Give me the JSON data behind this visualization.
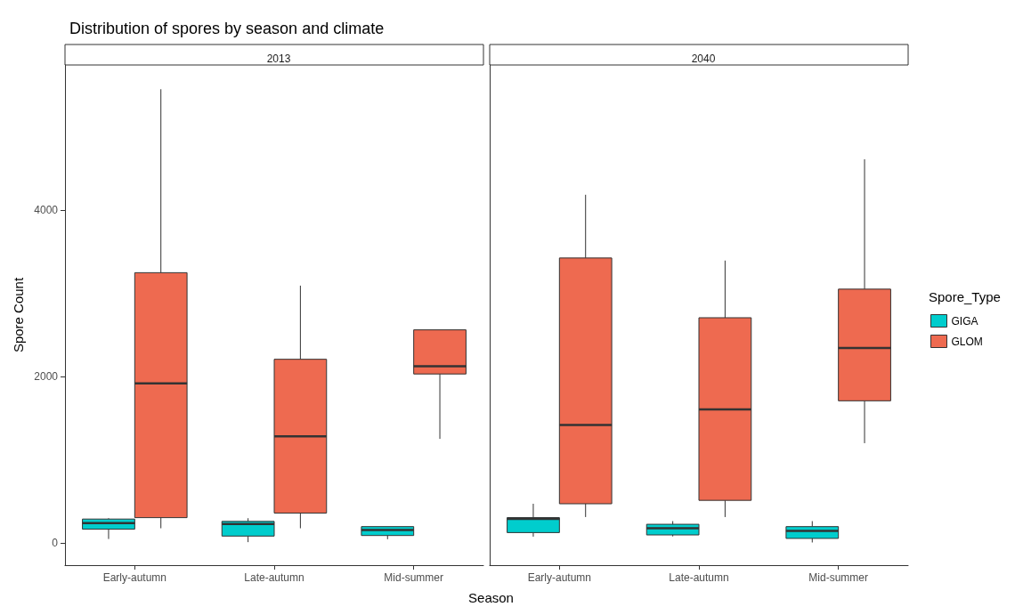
{
  "chart_data": [
    {
      "type": "box",
      "title": "Distribution of spores by season and climate",
      "subtitle": "2013",
      "legend_title": "Spore_Type",
      "legend": "right",
      "xlabel": "Season",
      "ylabel": "Spore Count",
      "categories": [
        "Early-autumn",
        "Late-autumn",
        "Mid-summer"
      ],
      "ylim": [
        -270,
        5750
      ],
      "yticks": [
        0,
        2000,
        4000
      ],
      "series": [
        {
          "name": "GIGA",
          "color": "#00cdcd",
          "boxes": [
            {
              "low": 45,
              "q1": 163,
              "median": 236,
              "q3": 285,
              "high": 295
            },
            {
              "low": 7,
              "q1": 80,
              "median": 226,
              "q3": 257,
              "high": 295
            },
            {
              "low": 42,
              "q1": 87,
              "median": 153,
              "q3": 194,
              "high": 194
            }
          ]
        },
        {
          "name": "GLOM",
          "color": "#ee6a50",
          "boxes": [
            {
              "low": 174,
              "q1": 302,
              "median": 1917,
              "q3": 3250,
              "high": 5458
            },
            {
              "low": 174,
              "q1": 357,
              "median": 1281,
              "q3": 2208,
              "high": 3094
            },
            {
              "low": 1250,
              "q1": 2031,
              "median": 2125,
              "q3": 2562,
              "high": 2562
            }
          ]
        }
      ]
    },
    {
      "type": "box",
      "subtitle": "2040",
      "tick_labels": "x",
      "categories": [
        "Early-autumn",
        "Late-autumn",
        "Mid-summer"
      ],
      "ylim": [
        -270,
        5750
      ],
      "yticks": [
        0,
        2000,
        4000
      ],
      "series": [
        {
          "color": "#00cdcd",
          "boxes": [
            {
              "low": 73,
              "q1": 122,
              "median": 288,
              "q3": 302,
              "high": 469
            },
            {
              "low": 76,
              "q1": 94,
              "median": 174,
              "q3": 222,
              "high": 260
            },
            {
              "low": 3,
              "q1": 52,
              "median": 142,
              "q3": 194,
              "high": 260
            }
          ]
        },
        {
          "color": "#ee6a50",
          "boxes": [
            {
              "low": 309,
              "q1": 469,
              "median": 1417,
              "q3": 3427,
              "high": 4188
            },
            {
              "low": 309,
              "q1": 510,
              "median": 1604,
              "q3": 2708,
              "high": 3396
            },
            {
              "low": 1198,
              "q1": 1708,
              "median": 2344,
              "q3": 3052,
              "high": 4615
            }
          ]
        }
      ]
    }
  ]
}
